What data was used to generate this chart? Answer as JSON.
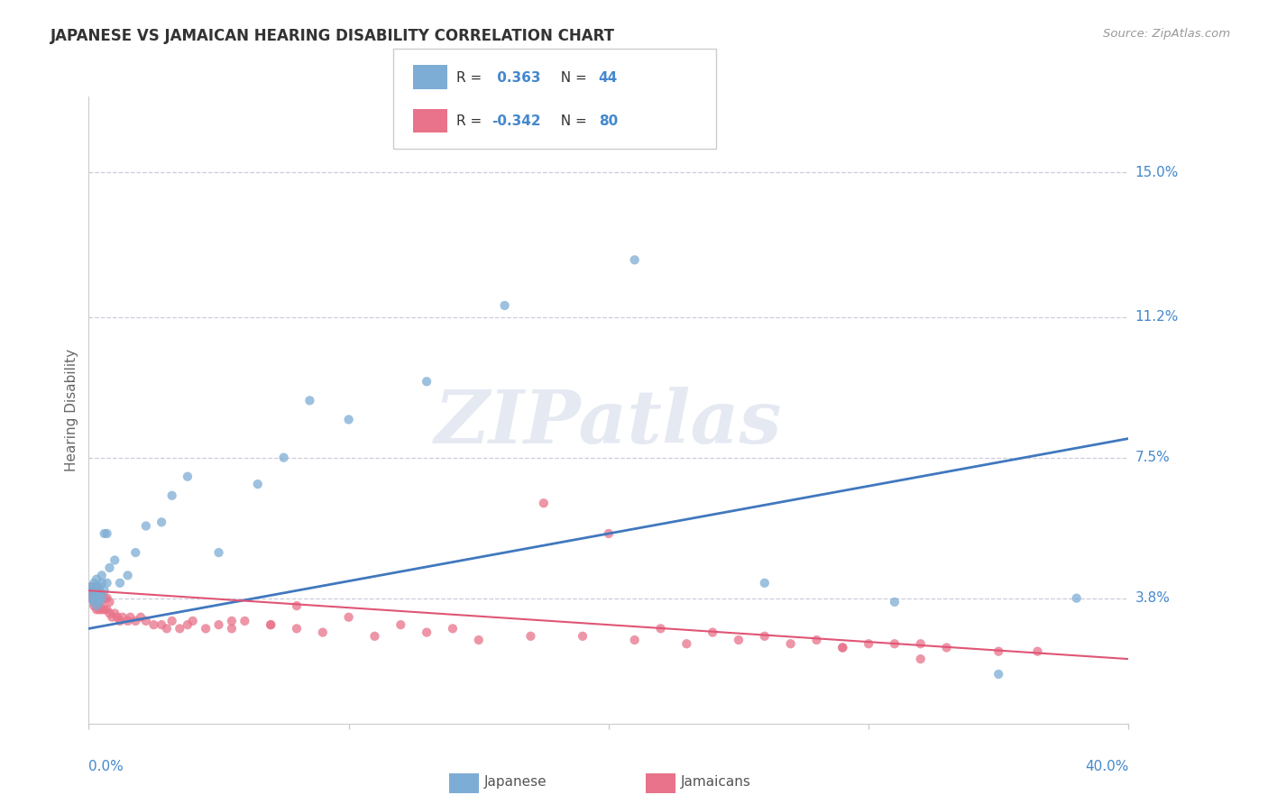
{
  "title": "JAPANESE VS JAMAICAN HEARING DISABILITY CORRELATION CHART",
  "source": "Source: ZipAtlas.com",
  "ylabel": "Hearing Disability",
  "ytick_labels": [
    "15.0%",
    "11.2%",
    "7.5%",
    "3.8%"
  ],
  "ytick_values": [
    0.15,
    0.112,
    0.075,
    0.038
  ],
  "xmin": 0.0,
  "xmax": 0.4,
  "ymin": 0.005,
  "ymax": 0.17,
  "watermark_text": "ZIPatlas",
  "japanese_color": "#7dadd4",
  "jamaican_color": "#e8738a",
  "line_blue": "#4178be",
  "line_pink": "#e05575",
  "legend_label1": "Japanese",
  "legend_label2": "Jamaicans",
  "legend_r1_prefix": "R = ",
  "legend_r1_value": " 0.363",
  "legend_r1_n": "N = 44",
  "legend_r2_prefix": "R = ",
  "legend_r2_value": "-0.342",
  "legend_r2_n": "N = 80",
  "japanese_points_x": [
    0.001,
    0.001,
    0.001,
    0.002,
    0.002,
    0.002,
    0.002,
    0.003,
    0.003,
    0.003,
    0.003,
    0.003,
    0.004,
    0.004,
    0.004,
    0.004,
    0.005,
    0.005,
    0.005,
    0.006,
    0.006,
    0.007,
    0.007,
    0.008,
    0.01,
    0.012,
    0.015,
    0.018,
    0.022,
    0.028,
    0.032,
    0.038,
    0.05,
    0.065,
    0.075,
    0.085,
    0.1,
    0.13,
    0.16,
    0.21,
    0.26,
    0.31,
    0.35,
    0.38
  ],
  "japanese_points_y": [
    0.038,
    0.04,
    0.041,
    0.037,
    0.039,
    0.04,
    0.042,
    0.036,
    0.038,
    0.039,
    0.041,
    0.043,
    0.037,
    0.039,
    0.041,
    0.038,
    0.038,
    0.042,
    0.044,
    0.04,
    0.055,
    0.042,
    0.055,
    0.046,
    0.048,
    0.042,
    0.044,
    0.05,
    0.057,
    0.058,
    0.065,
    0.07,
    0.05,
    0.068,
    0.075,
    0.09,
    0.085,
    0.095,
    0.115,
    0.127,
    0.042,
    0.037,
    0.018,
    0.038
  ],
  "jamaican_points_x": [
    0.001,
    0.001,
    0.001,
    0.001,
    0.002,
    0.002,
    0.002,
    0.002,
    0.003,
    0.003,
    0.003,
    0.003,
    0.003,
    0.004,
    0.004,
    0.004,
    0.004,
    0.005,
    0.005,
    0.005,
    0.006,
    0.006,
    0.007,
    0.007,
    0.008,
    0.008,
    0.009,
    0.01,
    0.011,
    0.012,
    0.013,
    0.015,
    0.016,
    0.018,
    0.02,
    0.022,
    0.025,
    0.028,
    0.03,
    0.032,
    0.035,
    0.038,
    0.04,
    0.045,
    0.05,
    0.055,
    0.06,
    0.07,
    0.08,
    0.09,
    0.11,
    0.13,
    0.15,
    0.17,
    0.19,
    0.21,
    0.23,
    0.25,
    0.27,
    0.29,
    0.31,
    0.33,
    0.35,
    0.365,
    0.175,
    0.2,
    0.22,
    0.24,
    0.26,
    0.28,
    0.3,
    0.32,
    0.12,
    0.14,
    0.055,
    0.07,
    0.32,
    0.29,
    0.1,
    0.08
  ],
  "jamaican_points_y": [
    0.038,
    0.039,
    0.04,
    0.041,
    0.036,
    0.037,
    0.039,
    0.04,
    0.035,
    0.036,
    0.038,
    0.039,
    0.041,
    0.035,
    0.037,
    0.038,
    0.04,
    0.035,
    0.037,
    0.039,
    0.035,
    0.038,
    0.035,
    0.038,
    0.034,
    0.037,
    0.033,
    0.034,
    0.033,
    0.032,
    0.033,
    0.032,
    0.033,
    0.032,
    0.033,
    0.032,
    0.031,
    0.031,
    0.03,
    0.032,
    0.03,
    0.031,
    0.032,
    0.03,
    0.031,
    0.03,
    0.032,
    0.031,
    0.03,
    0.029,
    0.028,
    0.029,
    0.027,
    0.028,
    0.028,
    0.027,
    0.026,
    0.027,
    0.026,
    0.025,
    0.026,
    0.025,
    0.024,
    0.024,
    0.063,
    0.055,
    0.03,
    0.029,
    0.028,
    0.027,
    0.026,
    0.026,
    0.031,
    0.03,
    0.032,
    0.031,
    0.022,
    0.025,
    0.033,
    0.036
  ],
  "blue_line_x": [
    0.0,
    0.4
  ],
  "blue_line_y": [
    0.03,
    0.08
  ],
  "pink_line_x": [
    0.0,
    0.4
  ],
  "pink_line_y": [
    0.04,
    0.022
  ]
}
